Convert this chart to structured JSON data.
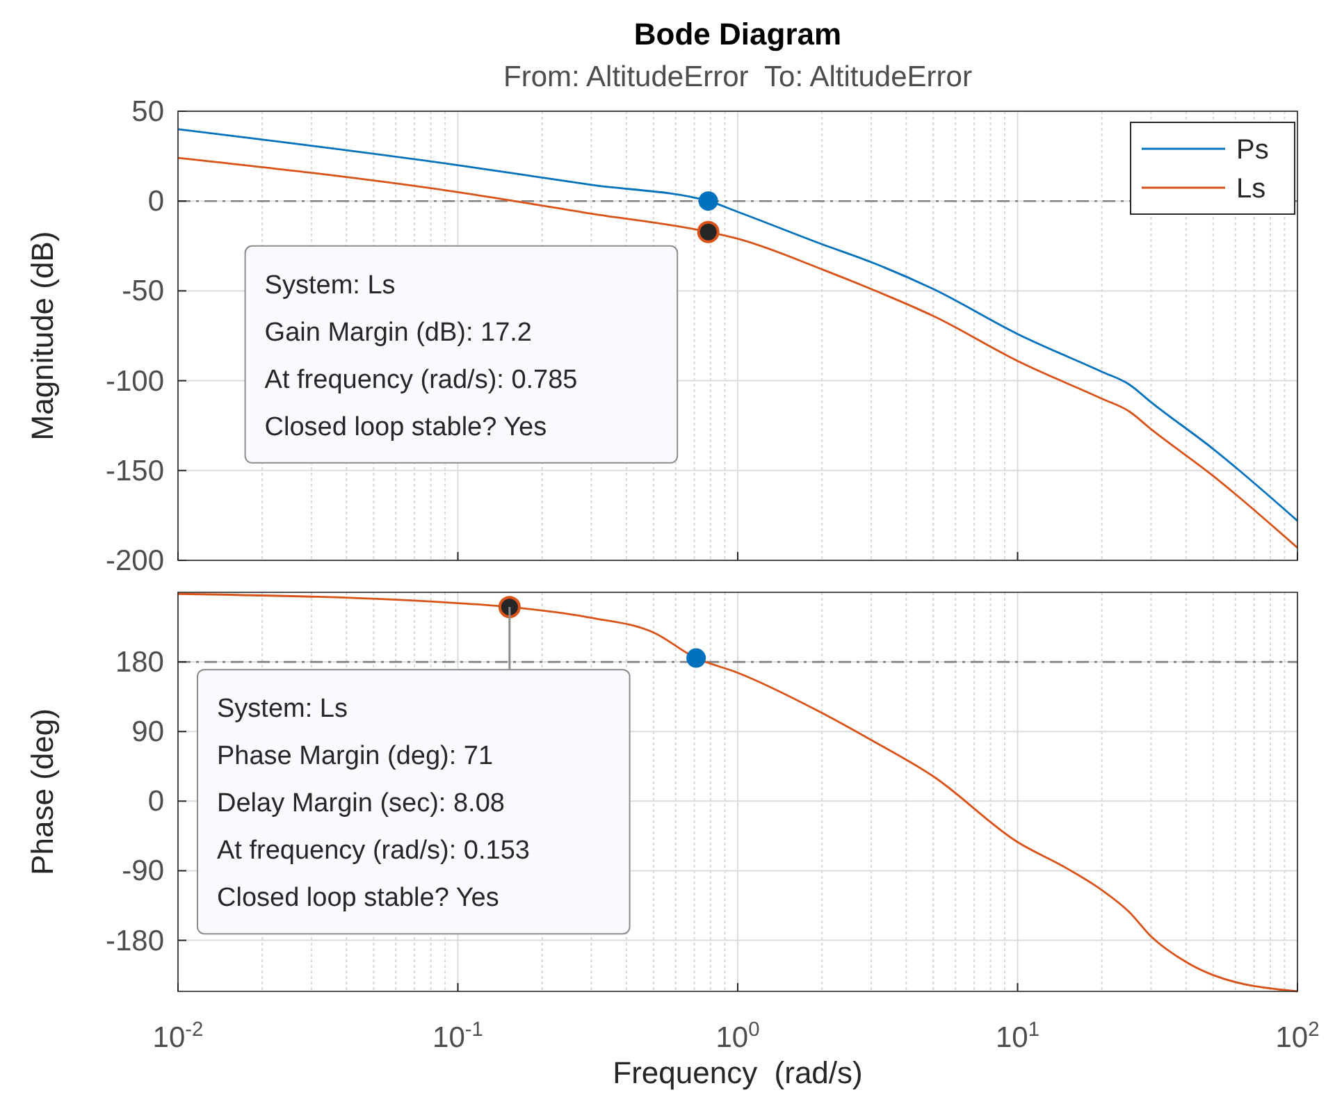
{
  "chart_data": [
    {
      "type": "line",
      "title": "Bode Diagram",
      "subtitle": "From: AltitudeError  To: AltitudeError",
      "ylabel": "Magnitude (dB)",
      "x": [
        0.01,
        0.1,
        0.3,
        0.785,
        1,
        2,
        3,
        5,
        10,
        20,
        25,
        30,
        50,
        100
      ],
      "series": [
        {
          "name": "Ps",
          "color": "#0072bd",
          "values": [
            40,
            20,
            9,
            0,
            -6,
            -24,
            -34,
            -49,
            -74,
            -95,
            -102,
            -112,
            -138,
            -178
          ]
        },
        {
          "name": "Ls",
          "color": "#d95319",
          "values": [
            24,
            5,
            -7,
            -17.2,
            -21,
            -38,
            -49,
            -64,
            -89,
            -110,
            -117,
            -127,
            -153,
            -193
          ]
        },
        {
          "type": "scatter",
          "color": "#0072bd",
          "x": [
            0.785
          ],
          "values": [
            0
          ],
          "marker": "circle"
        },
        {
          "type": "scatter",
          "color": "#262626",
          "x": [
            0.785
          ],
          "values": [
            -17.2
          ],
          "marker": "circle"
        }
      ],
      "xlim": [
        0.01,
        100
      ],
      "ylim": [
        -200,
        50
      ],
      "xticks": [
        {
          "value": 0.01,
          "label": null
        },
        {
          "value": 0.1,
          "label": null
        },
        {
          "value": 1,
          "label": null
        },
        {
          "value": 10,
          "label": null
        },
        {
          "value": 100,
          "label": null
        }
      ],
      "yticks": [
        -200,
        -150,
        -100,
        -50,
        0,
        50
      ],
      "log": "x",
      "grid": true,
      "legend": "top right",
      "tick_labels": "y",
      "ref_lines": [
        {
          "axis": "y",
          "value": 0,
          "color": "#808080",
          "line_style": "dashed"
        }
      ],
      "annotations": [
        "System: Ls\nGain Margin (dB): 17.2\nAt frequency (rad/s): 0.785\nClosed loop stable? Yes"
      ]
    },
    {
      "type": "line",
      "ylabel": "Phase (deg)",
      "xlabel": "Frequency  (rad/s)",
      "x": [
        0.01,
        0.1,
        0.153,
        0.3,
        0.5,
        0.71,
        1,
        2,
        3,
        5,
        10,
        15,
        20,
        25,
        30,
        40,
        50,
        100
      ],
      "series": [
        {
          "color": "#d95319",
          "values": [
            268,
            256,
            251,
            237,
            218,
            185,
            166,
            114,
            79,
            32,
            -53,
            -87,
            -115,
            -143,
            -175,
            -208,
            -225,
            -246
          ]
        },
        {
          "type": "scatter",
          "color": "#262626",
          "x": [
            0.153
          ],
          "values": [
            251
          ],
          "marker": "circle"
        },
        {
          "type": "scatter",
          "color": "#0072bd",
          "x": [
            0.71
          ],
          "values": [
            185
          ],
          "marker": "circle"
        }
      ],
      "xlim": [
        0.01,
        100
      ],
      "ylim": [
        -246,
        270
      ],
      "xticks": [
        {
          "value": 0.01,
          "label": "10$^{-2}$"
        },
        {
          "value": 0.1,
          "label": "10$^{-1}$"
        },
        {
          "value": 1,
          "label": "10$^{0}$"
        },
        {
          "value": 10,
          "label": "10$^{1}$"
        },
        {
          "value": 100,
          "label": "10$^{2}$"
        }
      ],
      "yticks": [
        -180,
        -90,
        0,
        90,
        180
      ],
      "log": "x",
      "grid": true,
      "ref_lines": [
        {
          "axis": "y",
          "value": 180,
          "color": "#808080",
          "line_style": "dashed"
        }
      ],
      "annotations": [
        {
          "text": "System: Ls\nPhase Margin (deg): 71\nDelay Margin (sec): 8.08\nAt frequency (rad/s): 0.153\nClosed loop stable? Yes",
          "x": 0.153,
          "y": 251
        }
      ]
    }
  ]
}
